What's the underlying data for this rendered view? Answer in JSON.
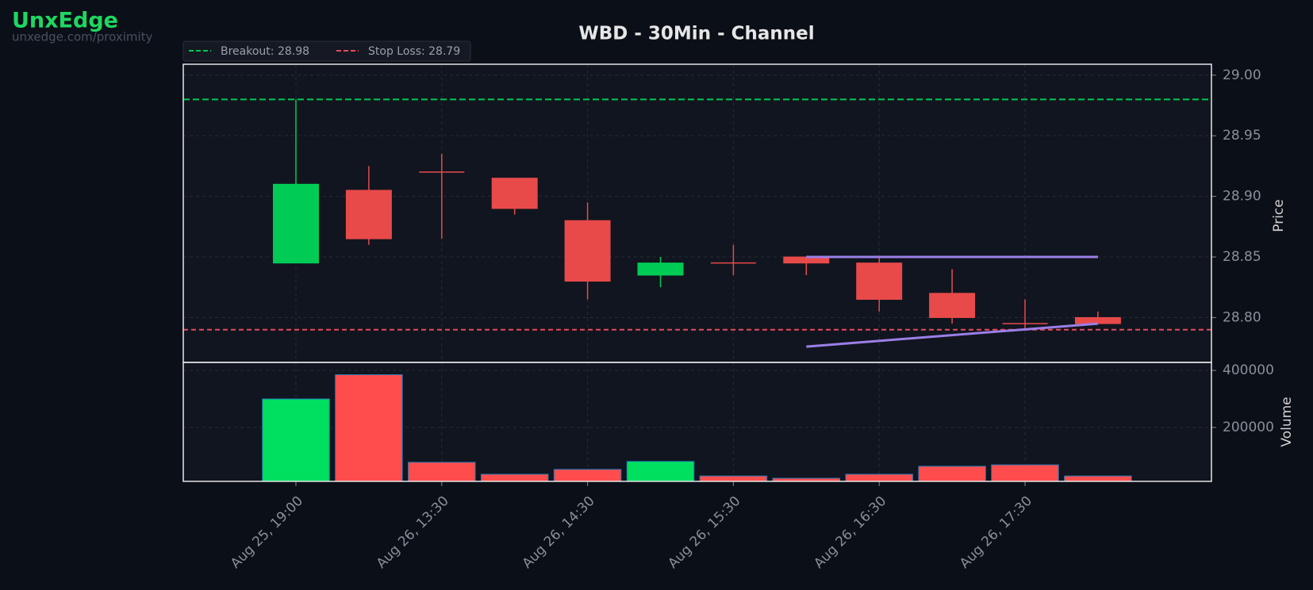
{
  "brand": {
    "name": "UnxEdge",
    "url": "unxedge.com/proximity"
  },
  "chart_data": [
    {
      "type": "candlestick",
      "title": "WBD - 30Min - Channel",
      "ylabel": "Price",
      "open": [
        28.845,
        28.905,
        28.92,
        28.915,
        28.88,
        28.835,
        28.845,
        28.85,
        28.845,
        28.82,
        28.795,
        28.8
      ],
      "high": [
        28.98,
        28.925,
        28.935,
        28.915,
        28.895,
        28.85,
        28.86,
        28.85,
        28.85,
        28.84,
        28.815,
        28.805
      ],
      "low": [
        28.845,
        28.86,
        28.865,
        28.885,
        28.815,
        28.825,
        28.835,
        28.835,
        28.805,
        28.795,
        28.79,
        28.795
      ],
      "close": [
        28.91,
        28.865,
        28.92,
        28.89,
        28.83,
        28.845,
        28.845,
        28.845,
        28.815,
        28.8,
        28.795,
        28.795
      ],
      "up_color": "#00cc55",
      "down_color": "#e84a4a",
      "ylim": [
        28.763,
        29.009
      ],
      "yticks": [
        {
          "value": 28.8,
          "label": "28.80"
        },
        28.85,
        {
          "value": 28.9,
          "label": "28.90"
        },
        28.95,
        {
          "value": 29.0,
          "label": "29.00"
        }
      ],
      "grid": true,
      "levels": [
        {
          "label": "Breakout: 28.98",
          "value": 28.98,
          "color": "#00c853"
        },
        {
          "label": "Stop Loss: 28.79",
          "value": 28.79,
          "color": "#e84a5a"
        }
      ],
      "channel": {
        "color": "#9b7fe6",
        "lines": [
          {
            "x": [
              7,
              11
            ],
            "y": [
              28.85,
              28.85
            ]
          },
          {
            "x": [
              7,
              11
            ],
            "y": [
              28.776,
              28.795
            ]
          }
        ]
      },
      "legend": "upper left"
    },
    {
      "type": "bar",
      "ylabel": "Volume",
      "categories": [
        "Aug 25, 19:00",
        null,
        "Aug 26, 13:30",
        null,
        "Aug 26, 14:30",
        null,
        "Aug 26, 15:30",
        null,
        "Aug 26, 16:30",
        null,
        "Aug 26, 17:30",
        null
      ],
      "values": [
        300000,
        385000,
        78000,
        36000,
        53000,
        81000,
        30000,
        22000,
        36000,
        64000,
        69000,
        30000
      ],
      "up_color": "#00e060",
      "down_color": "#ff4d4d",
      "edge_color": "#1f77b4",
      "ylim": [
        11000,
        428000
      ],
      "yticks": [
        200000,
        400000
      ],
      "grid": true
    }
  ]
}
